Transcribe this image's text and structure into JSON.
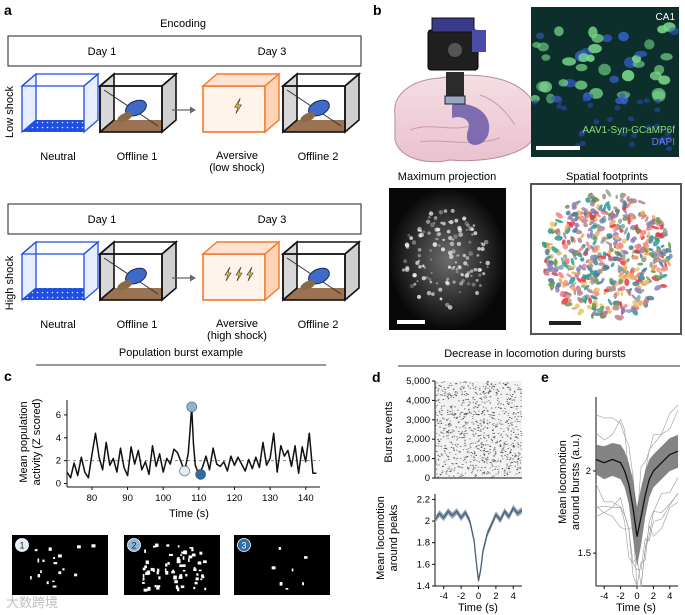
{
  "panels": {
    "a": {
      "letter": "a",
      "title": "Encoding",
      "rows": [
        {
          "side_label": "Low shock",
          "day1": "Day 1",
          "day3": "Day 3",
          "boxes": [
            "Neutral",
            "Offline 1",
            "Aversive",
            "Offline 2"
          ],
          "aversive_sub": "(low shock)"
        },
        {
          "side_label": "High shock",
          "day1": "Day 1",
          "day3": "Day 3",
          "boxes": [
            "Neutral",
            "Offline 1",
            "Aversive",
            "Offline 2"
          ],
          "aversive_sub": "(high shock)"
        }
      ]
    },
    "b": {
      "letter": "b",
      "region": "CA1",
      "construct": "AAV1-Syn-GCaMP6f",
      "stain": "DAPI",
      "max_proj_title": "Maximum projection",
      "footprints_title": "Spatial footprints"
    },
    "c": {
      "letter": "c",
      "section_title": "Population burst example",
      "ylabel_line1": "Mean population",
      "ylabel_line2": "activity (Z scored)",
      "xlabel": "Time (s)",
      "markers": [
        "1",
        "2",
        "3"
      ]
    },
    "d": {
      "letter": "d",
      "section_title": "Decrease in locomotion during bursts",
      "raster_ylabel": "Burst events",
      "loco_ylabel_line1": "Mean locomotion",
      "loco_ylabel_line2": "around peaks",
      "xlabel": "Time (s)"
    },
    "e": {
      "letter": "e",
      "ylabel_line1": "Mean locomotion",
      "ylabel_line2": "around bursts (a.u.)",
      "xlabel": "Time (s)"
    },
    "watermark": "大数跨境"
  },
  "chart_data": [
    {
      "id": "c-burst-trace",
      "type": "line",
      "xlabel": "Time (s)",
      "ylabel": "Mean population activity (Z scored)",
      "xlim": [
        73,
        144
      ],
      "ylim": [
        -0.3,
        7.3
      ],
      "xticks": [
        80,
        90,
        100,
        110,
        120,
        130,
        140
      ],
      "yticks": [
        0,
        2,
        4,
        6
      ],
      "threshold": 2,
      "x": [
        73,
        74,
        75,
        76,
        77,
        78,
        79,
        80,
        81,
        82,
        83,
        84,
        85,
        86,
        87,
        88,
        89,
        90,
        91,
        92,
        93,
        94,
        95,
        96,
        97,
        98,
        99,
        100,
        101,
        102,
        103,
        104,
        105,
        106,
        107,
        107.5,
        108,
        108.5,
        109,
        110,
        111,
        112,
        113,
        114,
        115,
        116,
        117,
        118,
        119,
        120,
        121,
        122,
        123,
        124,
        125,
        126,
        127,
        128,
        129,
        130,
        131,
        132,
        133,
        134,
        135,
        136,
        137,
        138,
        139,
        140,
        141,
        142,
        143
      ],
      "y": [
        1.0,
        0.5,
        1.8,
        0.7,
        2.3,
        1.0,
        0.5,
        2.5,
        4.4,
        2.3,
        1.2,
        3.6,
        1.6,
        2.2,
        1.0,
        3.1,
        1.4,
        0.7,
        3.2,
        1.7,
        2.9,
        1.2,
        1.9,
        0.8,
        3.3,
        1.5,
        2.6,
        1.0,
        2.2,
        1.7,
        3.0,
        2.7,
        1.9,
        1.1,
        2.6,
        4.5,
        6.7,
        3.4,
        1.6,
        0.8,
        1.4,
        2.4,
        1.2,
        3.1,
        1.7,
        1.5,
        1.9,
        1.1,
        2.4,
        1.6,
        2.3,
        1.7,
        1.1,
        2.1,
        1.3,
        2.3,
        1.4,
        3.6,
        1.6,
        2.2,
        4.4,
        1.0,
        3.3,
        2.4,
        2.9,
        1.5,
        3.3,
        0.9,
        3.2,
        1.9,
        4.4,
        0.9,
        0.9
      ],
      "highlighted_points": [
        {
          "label": "1",
          "x": 106,
          "y": 1.1,
          "color": "#e4eef7"
        },
        {
          "label": "2",
          "x": 108,
          "y": 6.7,
          "color": "#8cb4d6"
        },
        {
          "label": "3",
          "x": 110.5,
          "y": 0.8,
          "color": "#2c6ea3"
        }
      ]
    },
    {
      "id": "d-raster",
      "type": "scatter",
      "ylabel": "Burst events",
      "xlim": [
        -5,
        5
      ],
      "ylim": [
        0,
        5000
      ],
      "yticks": [
        0,
        1000,
        2000,
        3000,
        4000,
        5000
      ],
      "ytick_labels": [
        "0",
        "1,000",
        "2,000",
        "3,000",
        "4,000",
        "5,000"
      ]
    },
    {
      "id": "d-locomotion",
      "type": "line",
      "xlabel": "Time (s)",
      "ylabel": "Mean locomotion around peaks",
      "xlim": [
        -5,
        5
      ],
      "ylim": [
        1.4,
        2.25
      ],
      "xticks": [
        -4,
        -2,
        0,
        2,
        4
      ],
      "yticks": [
        1.4,
        1.6,
        1.8,
        2.0,
        2.2
      ],
      "x": [
        -5,
        -4.5,
        -4,
        -3.5,
        -3,
        -2.5,
        -2,
        -1.5,
        -1,
        -0.5,
        -0.25,
        0,
        0.25,
        0.5,
        1,
        1.5,
        2,
        2.5,
        3,
        3.5,
        4,
        4.5,
        5
      ],
      "y": [
        2.01,
        2.07,
        2.03,
        2.09,
        2.05,
        2.09,
        2.03,
        2.08,
        2.0,
        1.82,
        1.62,
        1.45,
        1.55,
        1.72,
        1.88,
        1.97,
        2.06,
        2.01,
        2.09,
        2.04,
        2.12,
        2.07,
        2.1
      ],
      "band": 0.03
    },
    {
      "id": "e-locomotion",
      "type": "line",
      "xlabel": "Time (s)",
      "ylabel": "Mean locomotion around bursts (a.u.)",
      "xlim": [
        -5,
        5
      ],
      "ylim": [
        1.3,
        2.45
      ],
      "xticks": [
        -4,
        -2,
        0,
        2,
        4
      ],
      "yticks": [
        1.5,
        2.0
      ],
      "x": [
        -5,
        -4,
        -3,
        -2,
        -1.5,
        -1,
        -0.5,
        0,
        0.5,
        1,
        1.5,
        2,
        3,
        4,
        5
      ],
      "y": [
        2.07,
        2.05,
        2.07,
        2.05,
        2.0,
        1.92,
        1.78,
        1.6,
        1.72,
        1.85,
        1.95,
        2.0,
        2.05,
        2.1,
        2.12
      ],
      "band_low": [
        1.98,
        1.95,
        1.97,
        1.95,
        1.9,
        1.8,
        1.6,
        1.42,
        1.55,
        1.72,
        1.84,
        1.9,
        1.95,
        2.0,
        2.02
      ],
      "band_high": [
        2.16,
        2.15,
        2.17,
        2.16,
        2.12,
        2.05,
        1.95,
        1.78,
        1.9,
        2.0,
        2.07,
        2.1,
        2.15,
        2.2,
        2.22
      ]
    }
  ]
}
